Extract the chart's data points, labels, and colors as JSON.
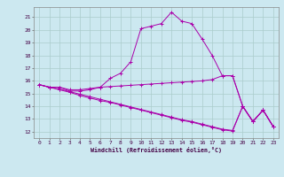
{
  "xlabel": "Windchill (Refroidissement éolien,°C)",
  "background_color": "#cce8f0",
  "grid_color": "#aacccc",
  "line_color": "#aa00aa",
  "xlim": [
    -0.5,
    23.5
  ],
  "ylim": [
    11.5,
    21.8
  ],
  "yticks": [
    12,
    13,
    14,
    15,
    16,
    17,
    18,
    19,
    20,
    21
  ],
  "xticks": [
    0,
    1,
    2,
    3,
    4,
    5,
    6,
    7,
    8,
    9,
    10,
    11,
    12,
    13,
    14,
    15,
    16,
    17,
    18,
    19,
    20,
    21,
    22,
    23
  ],
  "s1": [
    15.7,
    15.5,
    15.5,
    15.2,
    15.2,
    15.3,
    15.5,
    16.2,
    16.6,
    17.5,
    20.1,
    20.3,
    20.5,
    21.4,
    20.7,
    20.5,
    19.3,
    18.0,
    16.4,
    16.4,
    14.0,
    12.8,
    13.7,
    12.4
  ],
  "s2": [
    15.7,
    15.5,
    15.5,
    15.3,
    15.3,
    15.4,
    15.5,
    15.55,
    15.6,
    15.65,
    15.7,
    15.75,
    15.8,
    15.85,
    15.9,
    15.95,
    16.0,
    16.1,
    16.4,
    16.4,
    14.0,
    12.8,
    13.7,
    12.4
  ],
  "s3": [
    15.7,
    15.5,
    15.3,
    15.1,
    14.85,
    14.65,
    14.45,
    14.3,
    14.1,
    13.9,
    13.7,
    13.5,
    13.3,
    13.1,
    12.9,
    12.75,
    12.55,
    12.35,
    12.15,
    12.05,
    14.0,
    12.8,
    13.7,
    12.4
  ],
  "s4": [
    15.7,
    15.5,
    15.35,
    15.15,
    14.95,
    14.75,
    14.55,
    14.35,
    14.15,
    13.95,
    13.75,
    13.55,
    13.35,
    13.15,
    12.95,
    12.8,
    12.6,
    12.4,
    12.2,
    12.1,
    14.0,
    12.8,
    13.7,
    12.4
  ]
}
